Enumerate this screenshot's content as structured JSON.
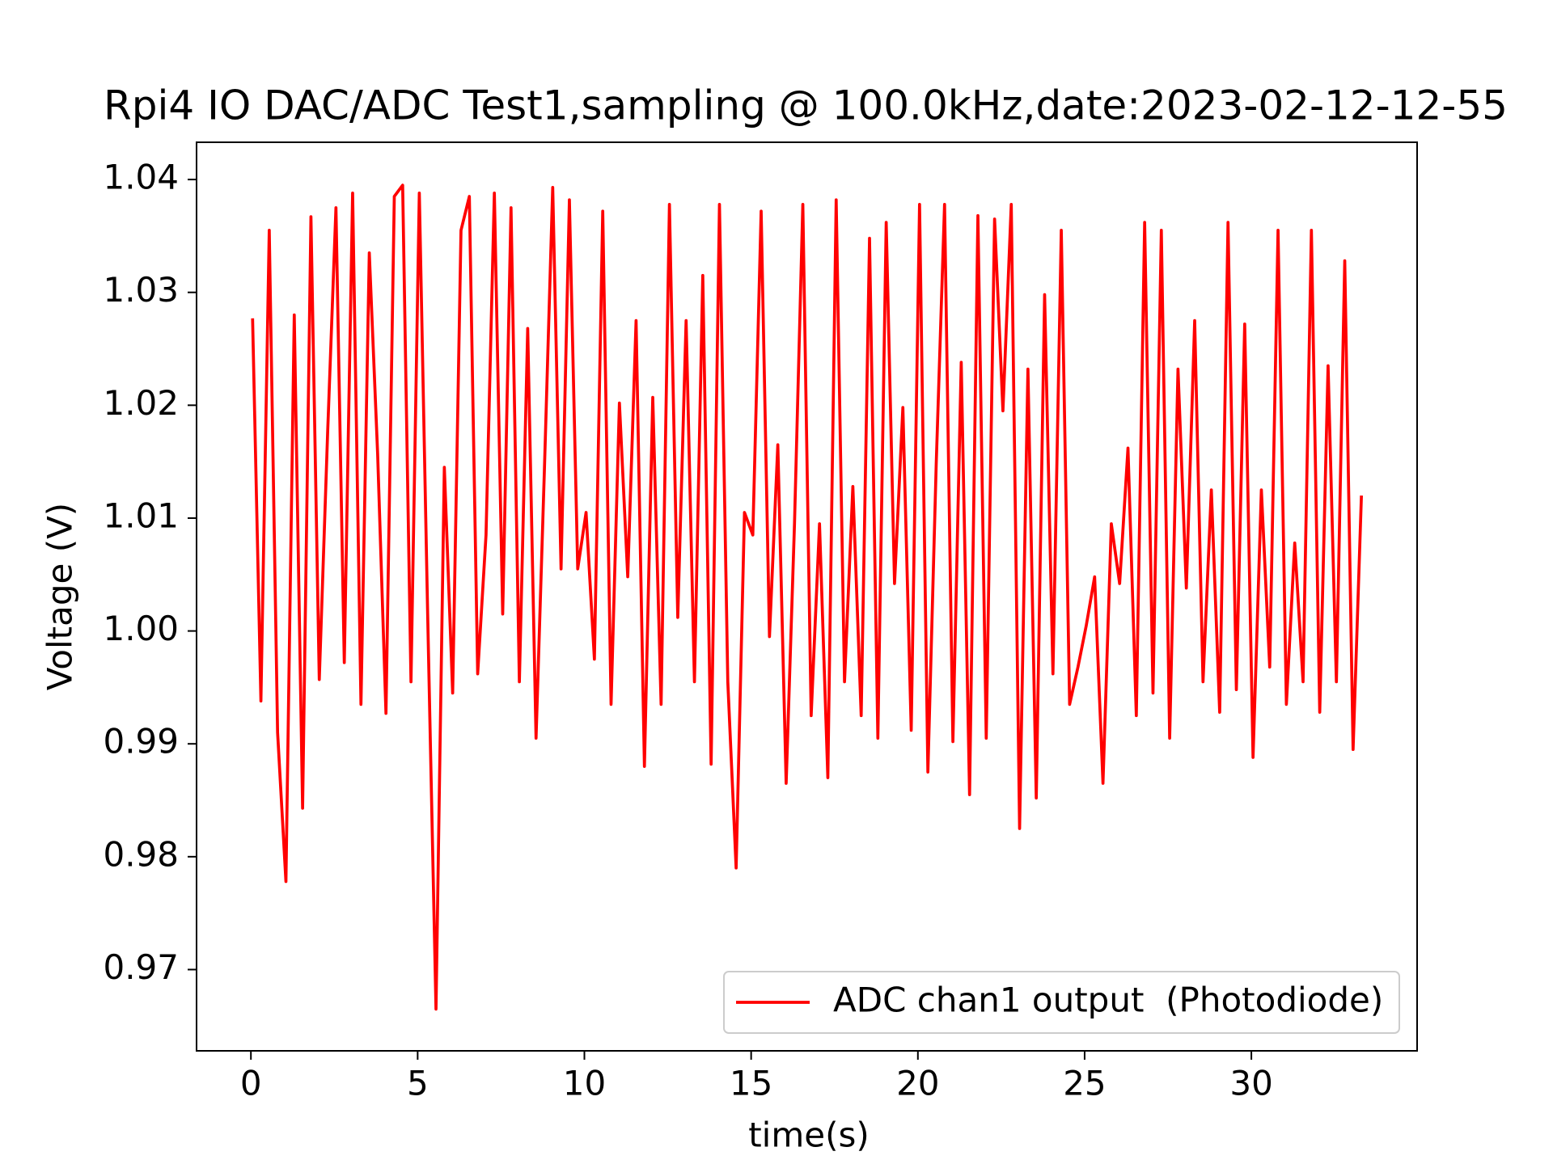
{
  "chart_data": {
    "type": "line",
    "title": "Rpi4 IO DAC/ADC Test1,sampling @ 100.0kHz,date:2023-02-12-12-55",
    "x_label": "time(s)",
    "y_label": "Voltage (V)",
    "xlim": [
      -1.63,
      34.97
    ],
    "ylim": [
      0.9628,
      1.0433
    ],
    "xticks": [
      0,
      5,
      10,
      15,
      20,
      25,
      30
    ],
    "yticks": [
      0.97,
      0.98,
      0.99,
      {
        "value": 1,
        "label": "1.00"
      },
      1.01,
      1.02,
      1.03,
      1.04
    ],
    "legend": "lower right",
    "grid": false,
    "x": [
      0.05,
      0.3,
      0.55,
      0.8,
      1.05,
      1.3,
      1.55,
      1.8,
      2.05,
      2.3,
      2.55,
      2.8,
      3.05,
      3.3,
      3.55,
      3.8,
      4.05,
      4.3,
      4.55,
      4.8,
      5.05,
      5.3,
      5.55,
      5.8,
      6.05,
      6.3,
      6.55,
      6.8,
      7.05,
      7.3,
      7.55,
      7.8,
      8.05,
      8.3,
      8.55,
      8.8,
      9.05,
      9.3,
      9.55,
      9.8,
      10.05,
      10.3,
      10.55,
      10.8,
      11.05,
      11.3,
      11.55,
      11.8,
      12.05,
      12.3,
      12.55,
      12.8,
      13.05,
      13.3,
      13.55,
      13.8,
      14.05,
      14.3,
      14.55,
      14.8,
      15.05,
      15.3,
      15.55,
      15.8,
      16.05,
      16.3,
      16.55,
      16.8,
      17.05,
      17.3,
      17.55,
      17.8,
      18.05,
      18.3,
      18.55,
      18.8,
      19.05,
      19.3,
      19.55,
      19.8,
      20.05,
      20.3,
      20.55,
      20.8,
      21.05,
      21.3,
      21.55,
      21.8,
      22.05,
      22.3,
      22.55,
      22.8,
      23.05,
      23.3,
      23.55,
      23.8,
      24.05,
      24.3,
      24.55,
      24.8,
      25.05,
      25.3,
      25.55,
      25.8,
      26.05,
      26.3,
      26.55,
      26.8,
      27.05,
      27.3,
      27.55,
      27.8,
      28.05,
      28.3,
      28.55,
      28.8,
      29.05,
      29.3,
      29.55,
      29.8,
      30.05,
      30.3,
      30.55,
      30.8,
      31.05,
      31.3,
      31.55,
      31.8,
      32.05,
      32.3,
      32.55,
      32.8,
      33.05,
      33.3
    ],
    "series": [
      {
        "name": "ADC chan1 output  (Photodiode)",
        "color": "#ff0000",
        "values": [
          1.0277,
          0.9938,
          1.0355,
          0.991,
          0.9778,
          1.028,
          0.9843,
          1.0367,
          0.9957,
          1.0175,
          1.0375,
          0.9972,
          1.0388,
          0.9935,
          1.0335,
          1.0157,
          0.9927,
          1.0385,
          1.0395,
          0.9955,
          1.0388,
          1.0015,
          0.9665,
          1.0145,
          0.9945,
          1.0355,
          1.0385,
          0.9962,
          1.0085,
          1.0388,
          1.0015,
          1.0375,
          0.9955,
          1.0268,
          0.9905,
          1.0142,
          1.0393,
          1.0055,
          1.0382,
          1.0055,
          1.0105,
          0.9975,
          1.0372,
          0.9935,
          1.0202,
          1.0048,
          1.0275,
          0.988,
          1.0207,
          0.9935,
          1.0378,
          1.0012,
          1.0275,
          0.9955,
          1.0315,
          0.9882,
          1.0378,
          0.9955,
          0.979,
          1.0105,
          1.0085,
          1.0372,
          0.9995,
          1.0165,
          0.9865,
          1.0095,
          1.0378,
          0.9925,
          1.0095,
          0.987,
          1.0382,
          0.9955,
          1.0128,
          0.9925,
          1.0348,
          0.9905,
          1.0362,
          1.0042,
          1.0198,
          0.9912,
          1.0378,
          0.9875,
          1.0148,
          1.0378,
          0.9902,
          1.0238,
          0.9855,
          1.0368,
          0.9905,
          1.0365,
          1.0195,
          1.0378,
          0.9825,
          1.0232,
          0.9852,
          1.0298,
          0.9962,
          1.0355,
          0.9935,
          0.9968,
          1.0005,
          1.0048,
          0.9865,
          1.0095,
          1.0042,
          1.0162,
          0.9925,
          1.0362,
          0.9945,
          1.0355,
          0.9905,
          1.0232,
          1.0038,
          1.0275,
          0.9955,
          1.0125,
          0.9928,
          1.0362,
          0.9948,
          1.0272,
          0.9888,
          1.0125,
          0.9968,
          1.0355,
          0.9935,
          1.0078,
          0.9955,
          1.0355,
          0.9928,
          1.0235,
          0.9955,
          1.0328,
          0.9895,
          1.012
        ]
      }
    ]
  }
}
